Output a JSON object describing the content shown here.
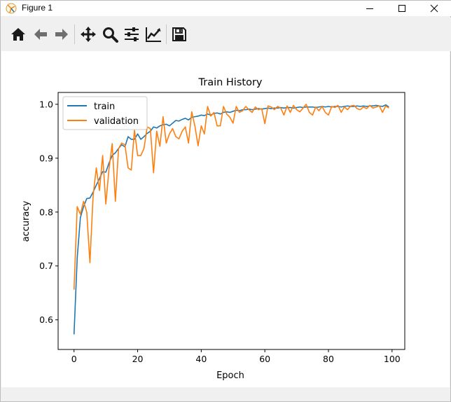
{
  "window": {
    "title": "Figure 1",
    "minimize_glyph": "—",
    "maximize_glyph": "☐",
    "close_glyph": "✕"
  },
  "toolbar": {
    "tools": [
      {
        "name": "home-icon"
      },
      {
        "name": "back-icon"
      },
      {
        "name": "forward-icon"
      },
      {
        "name": "pan-icon"
      },
      {
        "name": "zoom-icon"
      },
      {
        "name": "configure-subplots-icon"
      },
      {
        "name": "edit-axis-icon"
      },
      {
        "name": "save-icon"
      }
    ]
  },
  "chart_data": {
    "type": "line",
    "title": "Train History",
    "xlabel": "Epoch",
    "ylabel": "accuracy",
    "xlim": [
      -5,
      104
    ],
    "ylim": [
      0.545,
      1.022
    ],
    "xticks": [
      0,
      20,
      40,
      60,
      80,
      100
    ],
    "xtick_labels": [
      "0",
      "20",
      "40",
      "60",
      "80",
      "100"
    ],
    "yticks": [
      0.6,
      0.7,
      0.8,
      0.9,
      1.0
    ],
    "ytick_labels": [
      "0.6",
      "0.7",
      "0.8",
      "0.9",
      "1.0"
    ],
    "grid": false,
    "legend_position": "upper-left",
    "series": [
      {
        "name": "train",
        "color": "#1f77b4",
        "values": [
          0.573,
          0.715,
          0.79,
          0.81,
          0.825,
          0.826,
          0.837,
          0.85,
          0.862,
          0.875,
          0.874,
          0.891,
          0.905,
          0.91,
          0.918,
          0.925,
          0.921,
          0.94,
          0.935,
          0.935,
          0.945,
          0.935,
          0.94,
          0.946,
          0.95,
          0.958,
          0.956,
          0.96,
          0.962,
          0.963,
          0.96,
          0.965,
          0.97,
          0.969,
          0.972,
          0.974,
          0.971,
          0.976,
          0.977,
          0.978,
          0.98,
          0.979,
          0.982,
          0.98,
          0.983,
          0.984,
          0.982,
          0.985,
          0.986,
          0.985,
          0.987,
          0.989,
          0.988,
          0.99,
          0.99,
          0.991,
          0.99,
          0.991,
          0.992,
          0.991,
          0.992,
          0.993,
          0.992,
          0.993,
          0.993,
          0.994,
          0.993,
          0.994,
          0.994,
          0.993,
          0.994,
          0.995,
          0.994,
          0.995,
          0.995,
          0.995,
          0.994,
          0.995,
          0.996,
          0.995,
          0.996,
          0.995,
          0.996,
          0.996,
          0.995,
          0.996,
          0.997,
          0.996,
          0.996,
          0.997,
          0.996,
          0.997,
          0.996,
          0.997,
          0.997,
          0.998,
          0.997,
          0.996,
          0.999,
          0.995
        ]
      },
      {
        "name": "validation",
        "color": "#ff7f0e",
        "values": [
          0.656,
          0.81,
          0.796,
          0.82,
          0.8,
          0.706,
          0.83,
          0.882,
          0.84,
          0.905,
          0.815,
          0.88,
          0.927,
          0.82,
          0.918,
          0.928,
          0.925,
          0.882,
          0.878,
          0.952,
          0.905,
          0.905,
          0.918,
          0.958,
          0.955,
          0.873,
          0.95,
          0.922,
          0.977,
          0.928,
          0.945,
          0.955,
          0.94,
          0.936,
          0.95,
          0.958,
          0.928,
          0.986,
          0.96,
          0.923,
          0.96,
          0.945,
          0.996,
          0.978,
          0.985,
          0.96,
          0.96,
          0.996,
          0.982,
          0.976,
          0.965,
          0.996,
          0.985,
          0.988,
          0.996,
          0.99,
          0.985,
          0.995,
          0.99,
          0.992,
          0.964,
          0.997,
          0.995,
          0.99,
          0.996,
          0.993,
          0.98,
          0.997,
          0.985,
          0.998,
          0.99,
          0.986,
          0.993,
          1.0,
          0.985,
          0.98,
          0.995,
          0.988,
          0.996,
          0.985,
          0.98,
          0.996,
          0.994,
          0.998,
          0.985,
          0.995,
          0.99,
          0.997,
          0.998,
          0.992,
          0.99,
          0.995,
          0.992,
          0.998,
          0.993,
          0.995,
          0.997,
          0.985,
          0.997,
          0.993
        ]
      }
    ]
  }
}
